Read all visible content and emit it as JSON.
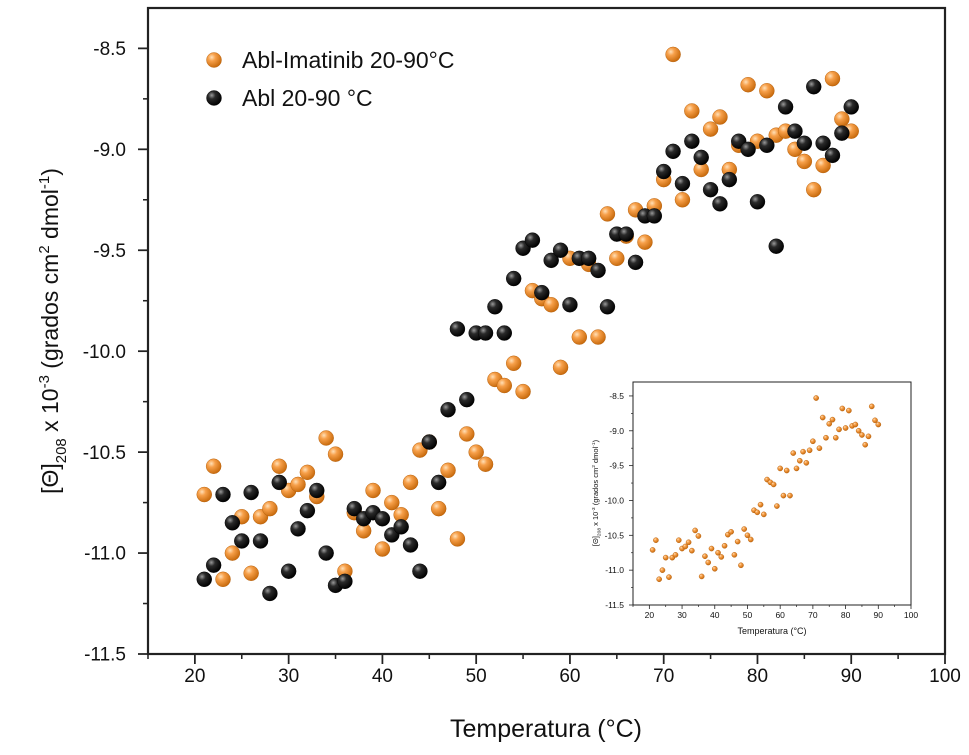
{
  "chart_data": [
    {
      "type": "scatter",
      "title": "",
      "xlabel": "Temperatura (°C)",
      "ylabel": {
        "prefix": "[Θ]",
        "subscript": "208",
        "middle": " x 10",
        "exp": "-3",
        "units_pre": " (grados cm",
        "units_exp1": "2",
        "units_mid": " dmol",
        "units_exp2": "-1",
        "units_post": ")"
      },
      "xlim": [
        15,
        100
      ],
      "ylim": [
        -11.5,
        -8.3
      ],
      "xticks": [
        20,
        30,
        40,
        50,
        60,
        70,
        80,
        90,
        100
      ],
      "yticks": [
        -8.5,
        -9.0,
        -9.5,
        -10.0,
        -10.5,
        -11.0,
        -11.5
      ],
      "ytick_labels": [
        "-8.5",
        "-9.0",
        "-9.5",
        "-10.0",
        "-10.5",
        "-11.0",
        "-11.5"
      ],
      "grid": false,
      "legend_placement": "top-left",
      "series": [
        {
          "name": "Abl-Imatinib 20-90°C",
          "color": "#f28a1c",
          "points": [
            [
              21,
              -10.71
            ],
            [
              22,
              -10.57
            ],
            [
              23,
              -11.13
            ],
            [
              24,
              -11.0
            ],
            [
              25,
              -10.82
            ],
            [
              26,
              -11.1
            ],
            [
              27,
              -10.82
            ],
            [
              28,
              -10.78
            ],
            [
              29,
              -10.57
            ],
            [
              30,
              -10.69
            ],
            [
              31,
              -10.66
            ],
            [
              32,
              -10.6
            ],
            [
              33,
              -10.72
            ],
            [
              34,
              -10.43
            ],
            [
              35,
              -10.51
            ],
            [
              36,
              -11.09
            ],
            [
              37,
              -10.8
            ],
            [
              38,
              -10.89
            ],
            [
              39,
              -10.69
            ],
            [
              40,
              -10.98
            ],
            [
              41,
              -10.75
            ],
            [
              42,
              -10.81
            ],
            [
              43,
              -10.65
            ],
            [
              44,
              -10.49
            ],
            [
              45,
              -10.45
            ],
            [
              46,
              -10.78
            ],
            [
              47,
              -10.59
            ],
            [
              48,
              -10.93
            ],
            [
              49,
              -10.41
            ],
            [
              50,
              -10.5
            ],
            [
              51,
              -10.56
            ],
            [
              52,
              -10.14
            ],
            [
              53,
              -10.17
            ],
            [
              54,
              -10.06
            ],
            [
              55,
              -10.2
            ],
            [
              56,
              -9.7
            ],
            [
              57,
              -9.74
            ],
            [
              58,
              -9.77
            ],
            [
              59,
              -10.08
            ],
            [
              60,
              -9.54
            ],
            [
              61,
              -9.93
            ],
            [
              62,
              -9.57
            ],
            [
              63,
              -9.93
            ],
            [
              64,
              -9.32
            ],
            [
              65,
              -9.54
            ],
            [
              66,
              -9.43
            ],
            [
              67,
              -9.3
            ],
            [
              68,
              -9.46
            ],
            [
              69,
              -9.28
            ],
            [
              70,
              -9.15
            ],
            [
              71,
              -8.53
            ],
            [
              72,
              -9.25
            ],
            [
              73,
              -8.81
            ],
            [
              74,
              -9.1
            ],
            [
              75,
              -8.9
            ],
            [
              76,
              -8.84
            ],
            [
              77,
              -9.1
            ],
            [
              78,
              -8.98
            ],
            [
              79,
              -8.68
            ],
            [
              80,
              -8.96
            ],
            [
              81,
              -8.71
            ],
            [
              82,
              -8.93
            ],
            [
              83,
              -8.91
            ],
            [
              84,
              -9.0
            ],
            [
              85,
              -9.06
            ],
            [
              86,
              -9.2
            ],
            [
              87,
              -9.08
            ],
            [
              88,
              -8.65
            ],
            [
              89,
              -8.85
            ],
            [
              90,
              -8.91
            ]
          ]
        },
        {
          "name": "Abl 20-90 °C",
          "color": "#111111",
          "points": [
            [
              21,
              -11.13
            ],
            [
              22,
              -11.06
            ],
            [
              23,
              -10.71
            ],
            [
              24,
              -10.85
            ],
            [
              25,
              -10.94
            ],
            [
              26,
              -10.7
            ],
            [
              27,
              -10.94
            ],
            [
              28,
              -11.2
            ],
            [
              29,
              -10.65
            ],
            [
              30,
              -11.09
            ],
            [
              31,
              -10.88
            ],
            [
              32,
              -10.79
            ],
            [
              33,
              -10.69
            ],
            [
              34,
              -11.0
            ],
            [
              35,
              -11.16
            ],
            [
              36,
              -11.14
            ],
            [
              37,
              -10.78
            ],
            [
              38,
              -10.83
            ],
            [
              39,
              -10.8
            ],
            [
              40,
              -10.83
            ],
            [
              41,
              -10.91
            ],
            [
              42,
              -10.87
            ],
            [
              43,
              -10.96
            ],
            [
              44,
              -11.09
            ],
            [
              45,
              -10.45
            ],
            [
              46,
              -10.65
            ],
            [
              47,
              -10.29
            ],
            [
              48,
              -9.89
            ],
            [
              49,
              -10.24
            ],
            [
              50,
              -9.91
            ],
            [
              51,
              -9.91
            ],
            [
              52,
              -9.78
            ],
            [
              53,
              -9.91
            ],
            [
              54,
              -9.64
            ],
            [
              55,
              -9.49
            ],
            [
              56,
              -9.45
            ],
            [
              57,
              -9.71
            ],
            [
              58,
              -9.55
            ],
            [
              59,
              -9.5
            ],
            [
              60,
              -9.77
            ],
            [
              61,
              -9.54
            ],
            [
              62,
              -9.54
            ],
            [
              63,
              -9.6
            ],
            [
              64,
              -9.78
            ],
            [
              65,
              -9.42
            ],
            [
              66,
              -9.42
            ],
            [
              67,
              -9.56
            ],
            [
              68,
              -9.33
            ],
            [
              69,
              -9.33
            ],
            [
              70,
              -9.11
            ],
            [
              71,
              -9.01
            ],
            [
              72,
              -9.17
            ],
            [
              73,
              -8.96
            ],
            [
              74,
              -9.04
            ],
            [
              75,
              -9.2
            ],
            [
              76,
              -9.27
            ],
            [
              77,
              -9.15
            ],
            [
              78,
              -8.96
            ],
            [
              79,
              -9.0
            ],
            [
              80,
              -9.26
            ],
            [
              81,
              -8.98
            ],
            [
              82,
              -9.48
            ],
            [
              83,
              -8.79
            ],
            [
              84,
              -8.91
            ],
            [
              85,
              -8.97
            ],
            [
              86,
              -8.69
            ],
            [
              87,
              -8.97
            ],
            [
              88,
              -9.03
            ],
            [
              89,
              -8.92
            ],
            [
              90,
              -8.79
            ]
          ]
        }
      ]
    },
    {
      "type": "scatter",
      "title": "",
      "xlabel": "Temperatura (°C)",
      "ylabel": {
        "prefix": "[Θ]",
        "subscript": "208",
        "middle": " x 10",
        "exp": "-3",
        "units_pre": " (grados cm",
        "units_exp1": "2",
        "units_mid": " dmol",
        "units_exp2": "-1",
        "units_post": ")"
      },
      "xlim": [
        15,
        100
      ],
      "ylim": [
        -11.5,
        -8.3
      ],
      "xticks": [
        20,
        30,
        40,
        50,
        60,
        70,
        80,
        90,
        100
      ],
      "yticks": [
        -8.5,
        -9.0,
        -9.5,
        -10.0,
        -10.5,
        -11.0,
        -11.5
      ],
      "ytick_labels": [
        "-8.5",
        "-9.0",
        "-9.5",
        "-10.0",
        "-10.5",
        "-11.0",
        "-11.5"
      ],
      "grid": false,
      "legend_placement": "none",
      "series": [
        {
          "name": "",
          "color": "#f28a1c",
          "points": [
            [
              21,
              -10.71
            ],
            [
              22,
              -10.57
            ],
            [
              23,
              -11.13
            ],
            [
              24,
              -11.0
            ],
            [
              25,
              -10.82
            ],
            [
              26,
              -11.1
            ],
            [
              27,
              -10.82
            ],
            [
              28,
              -10.78
            ],
            [
              29,
              -10.57
            ],
            [
              30,
              -10.69
            ],
            [
              31,
              -10.66
            ],
            [
              32,
              -10.6
            ],
            [
              33,
              -10.72
            ],
            [
              34,
              -10.43
            ],
            [
              35,
              -10.51
            ],
            [
              36,
              -11.09
            ],
            [
              37,
              -10.8
            ],
            [
              38,
              -10.89
            ],
            [
              39,
              -10.69
            ],
            [
              40,
              -10.98
            ],
            [
              41,
              -10.75
            ],
            [
              42,
              -10.81
            ],
            [
              43,
              -10.65
            ],
            [
              44,
              -10.49
            ],
            [
              45,
              -10.45
            ],
            [
              46,
              -10.78
            ],
            [
              47,
              -10.59
            ],
            [
              48,
              -10.93
            ],
            [
              49,
              -10.41
            ],
            [
              50,
              -10.5
            ],
            [
              51,
              -10.56
            ],
            [
              52,
              -10.14
            ],
            [
              53,
              -10.17
            ],
            [
              54,
              -10.06
            ],
            [
              55,
              -10.2
            ],
            [
              56,
              -9.7
            ],
            [
              57,
              -9.74
            ],
            [
              58,
              -9.77
            ],
            [
              59,
              -10.08
            ],
            [
              60,
              -9.54
            ],
            [
              61,
              -9.93
            ],
            [
              62,
              -9.57
            ],
            [
              63,
              -9.93
            ],
            [
              64,
              -9.32
            ],
            [
              65,
              -9.54
            ],
            [
              66,
              -9.43
            ],
            [
              67,
              -9.3
            ],
            [
              68,
              -9.46
            ],
            [
              69,
              -9.28
            ],
            [
              70,
              -9.15
            ],
            [
              71,
              -8.53
            ],
            [
              72,
              -9.25
            ],
            [
              73,
              -8.81
            ],
            [
              74,
              -9.1
            ],
            [
              75,
              -8.9
            ],
            [
              76,
              -8.84
            ],
            [
              77,
              -9.1
            ],
            [
              78,
              -8.98
            ],
            [
              79,
              -8.68
            ],
            [
              80,
              -8.96
            ],
            [
              81,
              -8.71
            ],
            [
              82,
              -8.93
            ],
            [
              83,
              -8.91
            ],
            [
              84,
              -9.0
            ],
            [
              85,
              -9.06
            ],
            [
              86,
              -9.2
            ],
            [
              87,
              -9.08
            ],
            [
              88,
              -8.65
            ],
            [
              89,
              -8.85
            ],
            [
              90,
              -8.91
            ]
          ]
        }
      ]
    }
  ]
}
